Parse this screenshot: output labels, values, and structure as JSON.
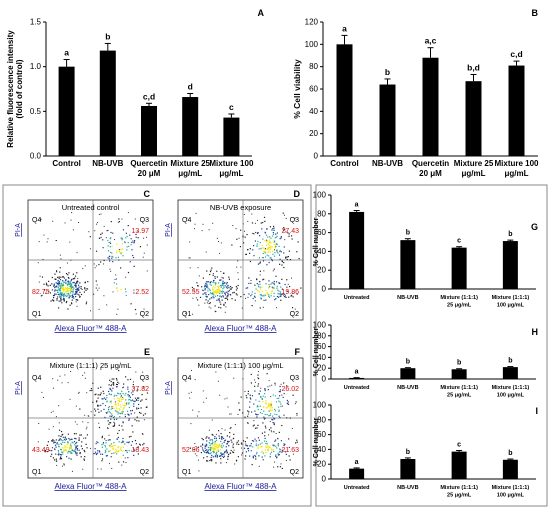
{
  "chart_data": [
    {
      "id": "A",
      "panel_label": "A",
      "type": "bar",
      "ylabel": "Relative fluorescence intensity (fold of control)",
      "ylabel_lines": [
        "Relative fluorescence intensity",
        "(fold of control)"
      ],
      "ylim": [
        0,
        1.5
      ],
      "yticks": [
        "0.0",
        "0.5",
        "1.0",
        "1.5"
      ],
      "categories": [
        "Control",
        "NB-UVB",
        "Quercetin 20 μM",
        "Mixture 25 μg/mL",
        "Mixture 100 μg/mL"
      ],
      "category_lines": [
        [
          "Control"
        ],
        [
          "NB-UVB"
        ],
        [
          "Quercetin",
          "20 μM"
        ],
        [
          "Mixture 25",
          "μg/mL"
        ],
        [
          "Mixture 100",
          "μg/mL"
        ]
      ],
      "values": [
        1.0,
        1.18,
        0.56,
        0.66,
        0.43
      ],
      "errors": [
        0.08,
        0.08,
        0.03,
        0.04,
        0.04
      ],
      "significance": [
        "a",
        "b",
        "c,d",
        "d",
        "c"
      ]
    },
    {
      "id": "B",
      "panel_label": "B",
      "type": "bar",
      "ylabel": "% Cell viability",
      "ylabel_lines": [
        "% Cell viability"
      ],
      "ylim": [
        0,
        120
      ],
      "yticks": [
        "0",
        "20",
        "40",
        "60",
        "80",
        "100",
        "120"
      ],
      "categories": [
        "Control",
        "NB-UVB",
        "Quercetin 20 μM",
        "Mixture 25 μg/mL",
        "Mixture 100 μg/mL"
      ],
      "category_lines": [
        [
          "Control"
        ],
        [
          "NB-UVB"
        ],
        [
          "Quercetin",
          "20 μM"
        ],
        [
          "Mixture 25",
          "μg/mL"
        ],
        [
          "Mixture 100",
          "μg/mL"
        ]
      ],
      "values": [
        100,
        64,
        88,
        67,
        81
      ],
      "errors": [
        8,
        5,
        9,
        6,
        4
      ],
      "significance": [
        "a",
        "b",
        "a,c",
        "b,d",
        "c,d"
      ]
    },
    {
      "id": "G",
      "panel_label": "G",
      "type": "bar",
      "ylabel": "% Cell number",
      "ylabel_lines": [
        "% Cell number"
      ],
      "ylim": [
        0,
        100
      ],
      "yticks": [
        "0",
        "20",
        "40",
        "60",
        "80",
        "100"
      ],
      "categories": [
        "Untreated",
        "NB-UVB",
        "Mixture (1:1:1) 25 μg/mL",
        "Mixture (1:1:1) 100 μg/mL"
      ],
      "category_lines": [
        [
          "Untreated"
        ],
        [
          "NB-UVB"
        ],
        [
          "Mixture (1:1:1)",
          "25 μg/mL"
        ],
        [
          "Mixture (1:1:1)",
          "100 μg/mL"
        ]
      ],
      "values": [
        82,
        52,
        44,
        51
      ],
      "errors": [
        1.5,
        1.5,
        1,
        1
      ],
      "significance": [
        "a",
        "b",
        "c",
        "b"
      ]
    },
    {
      "id": "H",
      "panel_label": "H",
      "type": "bar",
      "ylabel": "% Cell number",
      "ylabel_lines": [
        "% Cell number"
      ],
      "ylim": [
        0,
        100
      ],
      "yticks": [
        "0",
        "20",
        "40",
        "60",
        "80",
        "100"
      ],
      "categories": [
        "Untreated",
        "NB-UVB",
        "Mixture (1:1:1) 25 μg/mL",
        "Mixture (1:1:1) 100 μg/mL"
      ],
      "category_lines": [
        [
          "Untreated"
        ],
        [
          "NB-UVB"
        ],
        [
          "Mixture (1:1:1)",
          "25 μg/mL"
        ],
        [
          "Mixture (1:1:1)",
          "100 μg/mL"
        ]
      ],
      "values": [
        2,
        20,
        18,
        22
      ],
      "errors": [
        0.5,
        1,
        1,
        1
      ],
      "significance": [
        "a",
        "b",
        "b",
        "b"
      ]
    },
    {
      "id": "I",
      "panel_label": "I",
      "type": "bar",
      "ylabel": "% Cell number",
      "ylabel_lines": [
        "% Cell number"
      ],
      "ylim": [
        0,
        100
      ],
      "yticks": [
        "0",
        "20",
        "40",
        "60",
        "80",
        "100"
      ],
      "categories": [
        "Untreated",
        "NB-UVB",
        "Mixture (1:1:1) 25 μg/mL",
        "Mixture (1:1:1) 100 μg/mL"
      ],
      "category_lines": [
        [
          "Untreated"
        ],
        [
          "NB-UVB"
        ],
        [
          "Mixture (1:1:1)",
          "25 μg/mL"
        ],
        [
          "Mixture (1:1:1)",
          "100 μg/mL"
        ]
      ],
      "values": [
        14,
        27,
        37,
        26
      ],
      "errors": [
        1,
        1.5,
        1.5,
        1
      ],
      "significance": [
        "a",
        "b",
        "c",
        "b"
      ]
    }
  ],
  "flow_panels": [
    {
      "id": "C",
      "panel_label": "C",
      "title": "Untreated control",
      "q1": "82.75",
      "q2": "2.52",
      "q3": "13.97",
      "seed": 11
    },
    {
      "id": "D",
      "panel_label": "D",
      "title": "NB-UVB exposure",
      "q1": "52.55",
      "q2": "19.86",
      "q3": "27.43",
      "seed": 23
    },
    {
      "id": "E",
      "panel_label": "E",
      "title": "Mixture (1:1:1) 25 μg/mL",
      "q1": "43.49",
      "q2": "18.43",
      "q3": "37.82",
      "seed": 37
    },
    {
      "id": "F",
      "panel_label": "F",
      "title": "Mixture (1:1:1) 100 μg/mL",
      "q1": "52.06",
      "q2": "21.63",
      "q3": "26.02",
      "seed": 51
    }
  ],
  "flow_common": {
    "xlabel": "Alexa Fluor™ 488-A",
    "ylabel": "PI-A",
    "quadrant_names": [
      "Q1",
      "Q2",
      "Q3",
      "Q4"
    ]
  },
  "colors": {
    "bar": "#000000",
    "quadrant_value": "#dd1111",
    "axis_label_blue": "#1a1a9a",
    "density_high": "#f2e300",
    "density_mid": "#2aa6a0",
    "density_low": "#1f3c8f"
  }
}
